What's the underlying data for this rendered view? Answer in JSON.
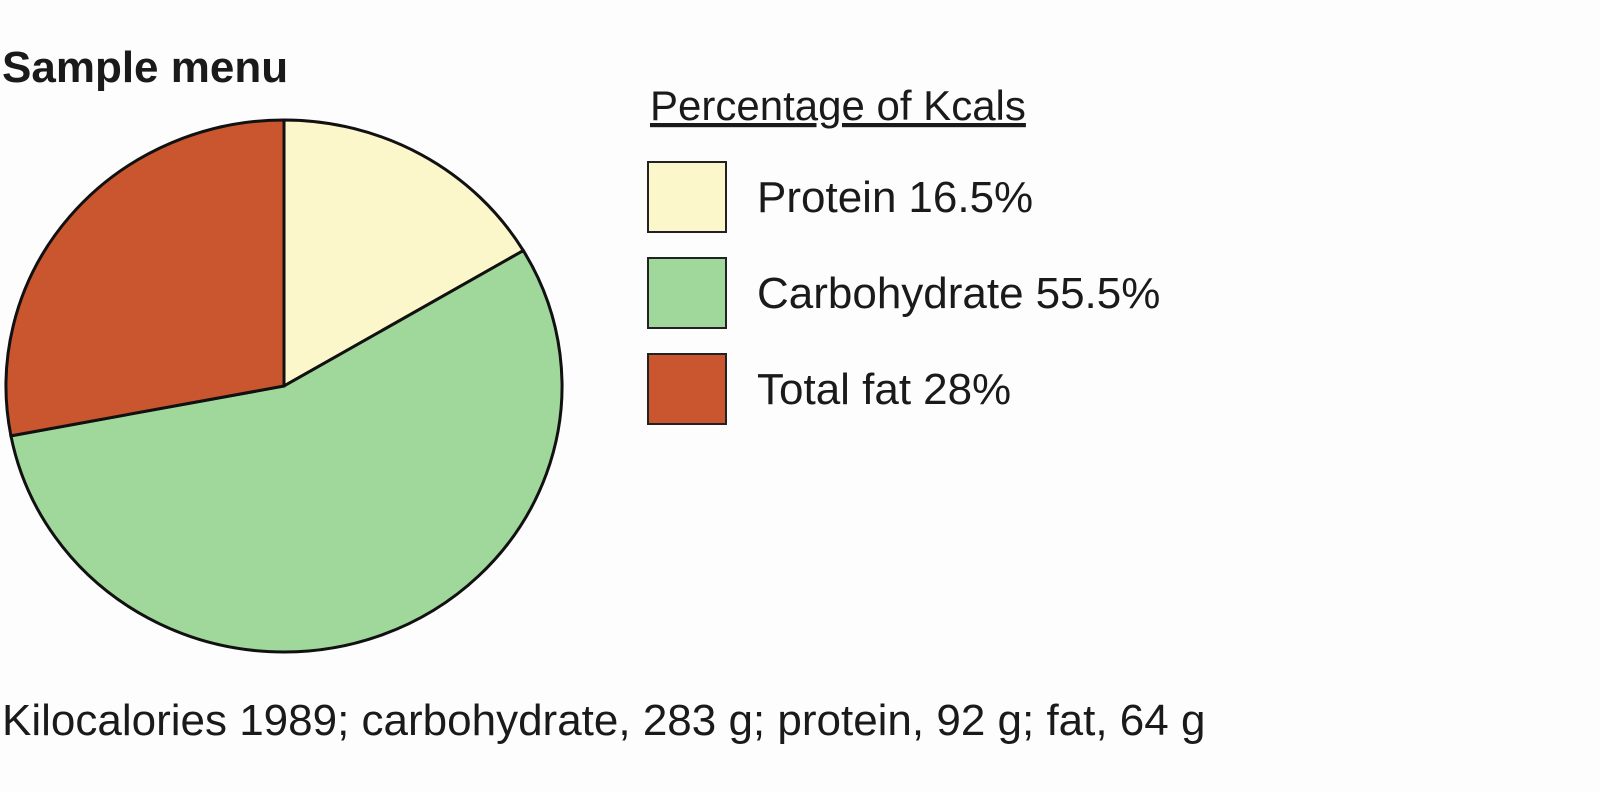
{
  "chart_data": {
    "type": "pie",
    "title": "Sample menu",
    "legend_title": "Percentage of Kcals",
    "categories": [
      "Protein",
      "Carbohydrate",
      "Total fat"
    ],
    "values": [
      16.5,
      55.5,
      28
    ],
    "value_labels": [
      "16.5%",
      "55.5%",
      "28%"
    ],
    "colors": [
      "#fcf6cb",
      "#a0d89b",
      "#c9562f"
    ],
    "note": "Kilocalories 1989; carbohydrate, 283 g; protein, 92 g; fat, 64 g"
  }
}
